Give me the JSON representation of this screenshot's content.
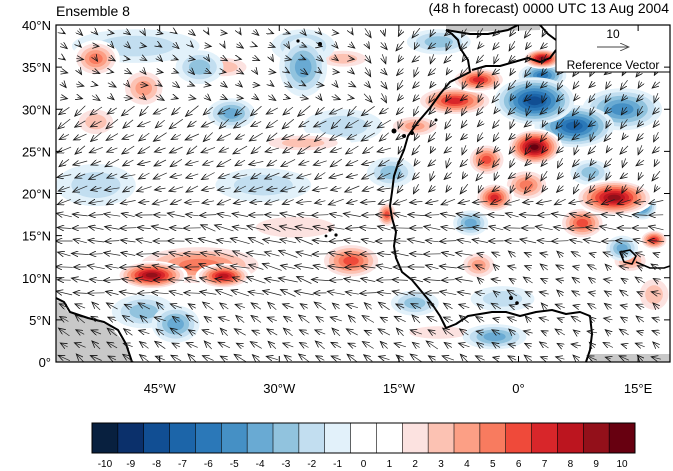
{
  "header": {
    "left_title": "Ensemble 8",
    "right_title": "(48 h forecast) 0000 UTC 13 Aug 2004"
  },
  "map": {
    "lat_labels": [
      "40°N",
      "35°N",
      "30°N",
      "25°N",
      "20°N",
      "15°N",
      "10°N",
      "5°N",
      "0°"
    ],
    "lon_labels": [
      "45°W",
      "30°W",
      "15°W",
      "0°",
      "15°E"
    ],
    "extent": {
      "lon_min": -58,
      "lon_max": 19,
      "lat_min": 0,
      "lat_max": 40
    },
    "lat_values": [
      40,
      35,
      30,
      25,
      20,
      15,
      10,
      5,
      0
    ],
    "lon_values": [
      -45,
      -30,
      -15,
      0,
      15
    ]
  },
  "reference_vector": {
    "magnitude_label": "10",
    "caption": "Reference Vector"
  },
  "colorbar": {
    "labels": [
      "-10",
      "-9",
      "-8",
      "-7",
      "-6",
      "-5",
      "-4",
      "-3",
      "-2",
      "-1",
      "0",
      "1",
      "2",
      "3",
      "4",
      "5",
      "6",
      "7",
      "8",
      "9",
      "10"
    ],
    "colors": [
      "#08203f",
      "#0b306b",
      "#114e93",
      "#1c65a9",
      "#2b78b8",
      "#4590c5",
      "#69aad3",
      "#91c3de",
      "#c2def0",
      "#e2f1fa",
      "#ffffff",
      "#ffffff",
      "#fce2e0",
      "#fcc2b3",
      "#fc9f85",
      "#f87b5f",
      "#ef4a3a",
      "#d8262a",
      "#bc151f",
      "#93101a",
      "#670010"
    ]
  },
  "anomalies": [
    {
      "lon": -46,
      "lat": 10.3,
      "value": 9,
      "rx": 4.5,
      "ry": 1.7
    },
    {
      "lon": -37,
      "lat": 10.2,
      "value": 8,
      "rx": 3.5,
      "ry": 1.5
    },
    {
      "lon": -40,
      "lat": 11.5,
      "value": 5,
      "rx": 9,
      "ry": 2.6
    },
    {
      "lon": -21,
      "lat": 12,
      "value": 6,
      "rx": 4,
      "ry": 2.2
    },
    {
      "lon": -16.5,
      "lat": 17.5,
      "value": 6,
      "rx": 1.3,
      "ry": 1.6
    },
    {
      "lon": 2,
      "lat": 25.5,
      "value": 10,
      "rx": 3.5,
      "ry": 2.2
    },
    {
      "lon": -4,
      "lat": 24,
      "value": 6,
      "rx": 2.5,
      "ry": 2
    },
    {
      "lon": -3,
      "lat": 19.5,
      "value": 7,
      "rx": 2.5,
      "ry": 1.8
    },
    {
      "lon": 1,
      "lat": 21,
      "value": 5,
      "rx": 3,
      "ry": 2
    },
    {
      "lon": 12,
      "lat": 19.5,
      "value": 9,
      "rx": 5,
      "ry": 2.2
    },
    {
      "lon": 8,
      "lat": 16.5,
      "value": 6,
      "rx": 3,
      "ry": 2
    },
    {
      "lon": -8,
      "lat": 31,
      "value": 7,
      "rx": 5,
      "ry": 1.8
    },
    {
      "lon": -5,
      "lat": 33.5,
      "value": 7,
      "rx": 3.5,
      "ry": 1.5
    },
    {
      "lon": 3,
      "lat": 36,
      "value": 9,
      "rx": 2.5,
      "ry": 1.2
    },
    {
      "lon": -13,
      "lat": 28,
      "value": 4,
      "rx": 3.5,
      "ry": 1.4
    },
    {
      "lon": -53,
      "lat": 36,
      "value": 5,
      "rx": 3,
      "ry": 2.2
    },
    {
      "lon": -47,
      "lat": 32.5,
      "value": 4,
      "rx": 3,
      "ry": 2.5
    },
    {
      "lon": -37,
      "lat": 35,
      "value": 3,
      "rx": 4,
      "ry": 1.5
    },
    {
      "lon": -22,
      "lat": 36,
      "value": 3,
      "rx": 4,
      "ry": 1.3
    },
    {
      "lon": -53,
      "lat": 28.5,
      "value": 3,
      "rx": 3,
      "ry": 2
    },
    {
      "lon": -27,
      "lat": 26,
      "value": 3,
      "rx": 6,
      "ry": 1.2
    },
    {
      "lon": -5,
      "lat": 11.5,
      "value": 4,
      "rx": 2.5,
      "ry": 1.8
    },
    {
      "lon": 14,
      "lat": 12,
      "value": 4,
      "rx": 2.5,
      "ry": 1.5
    },
    {
      "lon": 17,
      "lat": 14.5,
      "value": 7,
      "rx": 1.8,
      "ry": 1.2
    },
    {
      "lon": 17,
      "lat": 8,
      "value": 3,
      "rx": 2.5,
      "ry": 2.5
    },
    {
      "lon": -28,
      "lat": 16,
      "value": 2,
      "rx": 8,
      "ry": 2
    },
    {
      "lon": -10,
      "lat": 3.5,
      "value": 2,
      "rx": 6,
      "ry": 1.2
    },
    {
      "lon": 2,
      "lat": 31,
      "value": -8,
      "rx": 5,
      "ry": 2.8
    },
    {
      "lon": 7,
      "lat": 28,
      "value": -7,
      "rx": 5,
      "ry": 2.5
    },
    {
      "lon": 13,
      "lat": 30,
      "value": -5,
      "rx": 5,
      "ry": 2.5
    },
    {
      "lon": 3,
      "lat": 34,
      "value": -6,
      "rx": 3,
      "ry": 1.5
    },
    {
      "lon": -27,
      "lat": 35,
      "value": -4,
      "rx": 3,
      "ry": 3.5
    },
    {
      "lon": -27,
      "lat": 37.5,
      "value": -3,
      "rx": 4,
      "ry": 2
    },
    {
      "lon": -40,
      "lat": 35,
      "value": -3,
      "rx": 3,
      "ry": 2
    },
    {
      "lon": -36,
      "lat": 29.5,
      "value": -4,
      "rx": 3,
      "ry": 1.8
    },
    {
      "lon": -43,
      "lat": 4.5,
      "value": -4,
      "rx": 3,
      "ry": 2.2
    },
    {
      "lon": -47,
      "lat": 6,
      "value": -3,
      "rx": 4,
      "ry": 2
    },
    {
      "lon": -3,
      "lat": 3,
      "value": -4,
      "rx": 4,
      "ry": 1.5
    },
    {
      "lon": -13,
      "lat": 7,
      "value": -3,
      "rx": 3,
      "ry": 1.5
    },
    {
      "lon": 15.5,
      "lat": 18.5,
      "value": -6,
      "rx": 1.8,
      "ry": 1.6
    },
    {
      "lon": 13,
      "lat": 13.5,
      "value": -4,
      "rx": 2,
      "ry": 1.5
    },
    {
      "lon": -6,
      "lat": 16.5,
      "value": -4,
      "rx": 2.2,
      "ry": 1.5
    },
    {
      "lon": -48,
      "lat": 37.5,
      "value": -2,
      "rx": 8,
      "ry": 2
    },
    {
      "lon": -16,
      "lat": 22.5,
      "value": -3,
      "rx": 3,
      "ry": 1.8
    },
    {
      "lon": -22,
      "lat": 28,
      "value": -2,
      "rx": 5,
      "ry": 2
    },
    {
      "lon": -53,
      "lat": 21,
      "value": -2,
      "rx": 5,
      "ry": 2.5
    },
    {
      "lon": -32,
      "lat": 21,
      "value": -2,
      "rx": 6,
      "ry": 2
    },
    {
      "lon": -10,
      "lat": 38,
      "value": -3,
      "rx": 4,
      "ry": 1.5
    },
    {
      "lon": 9,
      "lat": 22.5,
      "value": -3,
      "rx": 2.5,
      "ry": 1.5
    },
    {
      "lon": -2,
      "lat": 7.5,
      "value": -2,
      "rx": 4,
      "ry": 1.5
    }
  ]
}
